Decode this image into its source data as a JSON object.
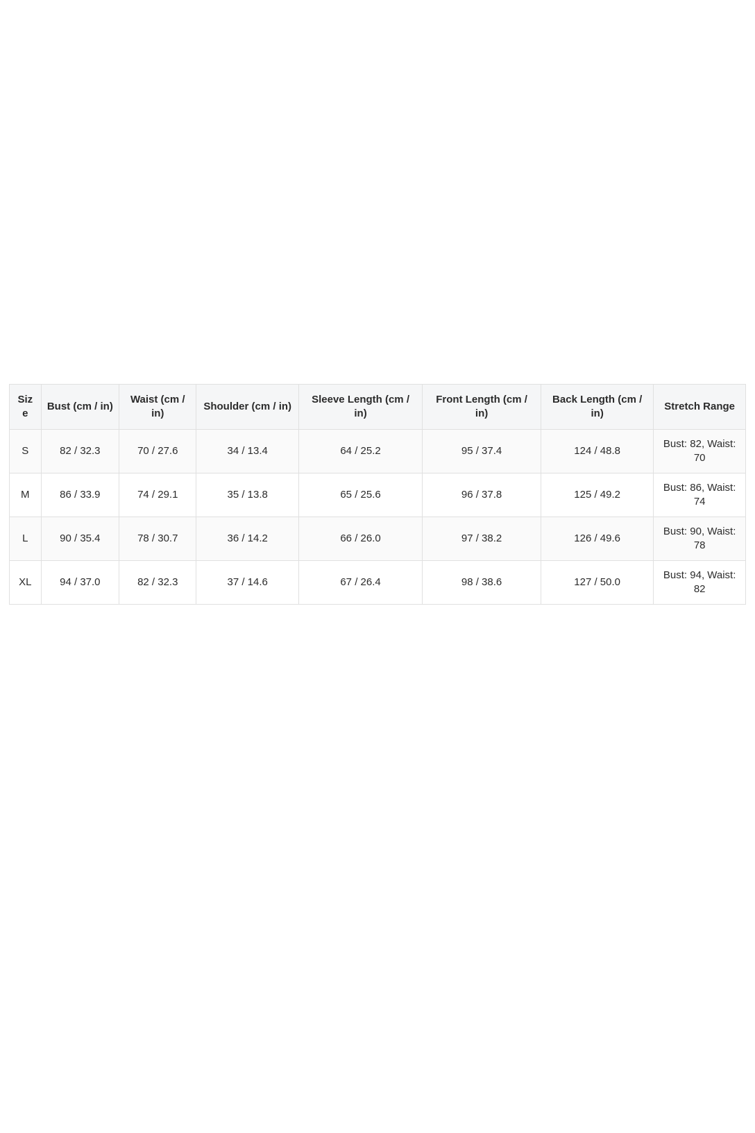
{
  "colors": {
    "border": "#e0e0e0",
    "header_background": "#f5f6f7",
    "stripe_background": "#fafafa",
    "text": "#2b2b2b",
    "page_background": "#ffffff"
  },
  "table": {
    "columns": [
      "Size",
      "Bust (cm / in)",
      "Waist (cm / in)",
      "Shoulder (cm / in)",
      "Sleeve Length (cm / in)",
      "Front Length (cm / in)",
      "Back Length (cm / in)",
      "Stretch Range"
    ],
    "rows": [
      [
        "S",
        "82 / 32.3",
        "70 / 27.6",
        "34 / 13.4",
        "64 / 25.2",
        "95 / 37.4",
        "124 / 48.8",
        "Bust: 82, Waist: 70"
      ],
      [
        "M",
        "86 / 33.9",
        "74 / 29.1",
        "35 / 13.8",
        "65 / 25.6",
        "96 / 37.8",
        "125 / 49.2",
        "Bust: 86, Waist: 74"
      ],
      [
        "L",
        "90 / 35.4",
        "78 / 30.7",
        "36 / 14.2",
        "66 / 26.0",
        "97 / 38.2",
        "126 / 49.6",
        "Bust: 90, Waist: 78"
      ],
      [
        "XL",
        "94 / 37.0",
        "82 / 32.3",
        "37 / 14.6",
        "67 / 26.4",
        "98 / 38.6",
        "127 / 50.0",
        "Bust: 94, Waist: 82"
      ]
    ]
  }
}
